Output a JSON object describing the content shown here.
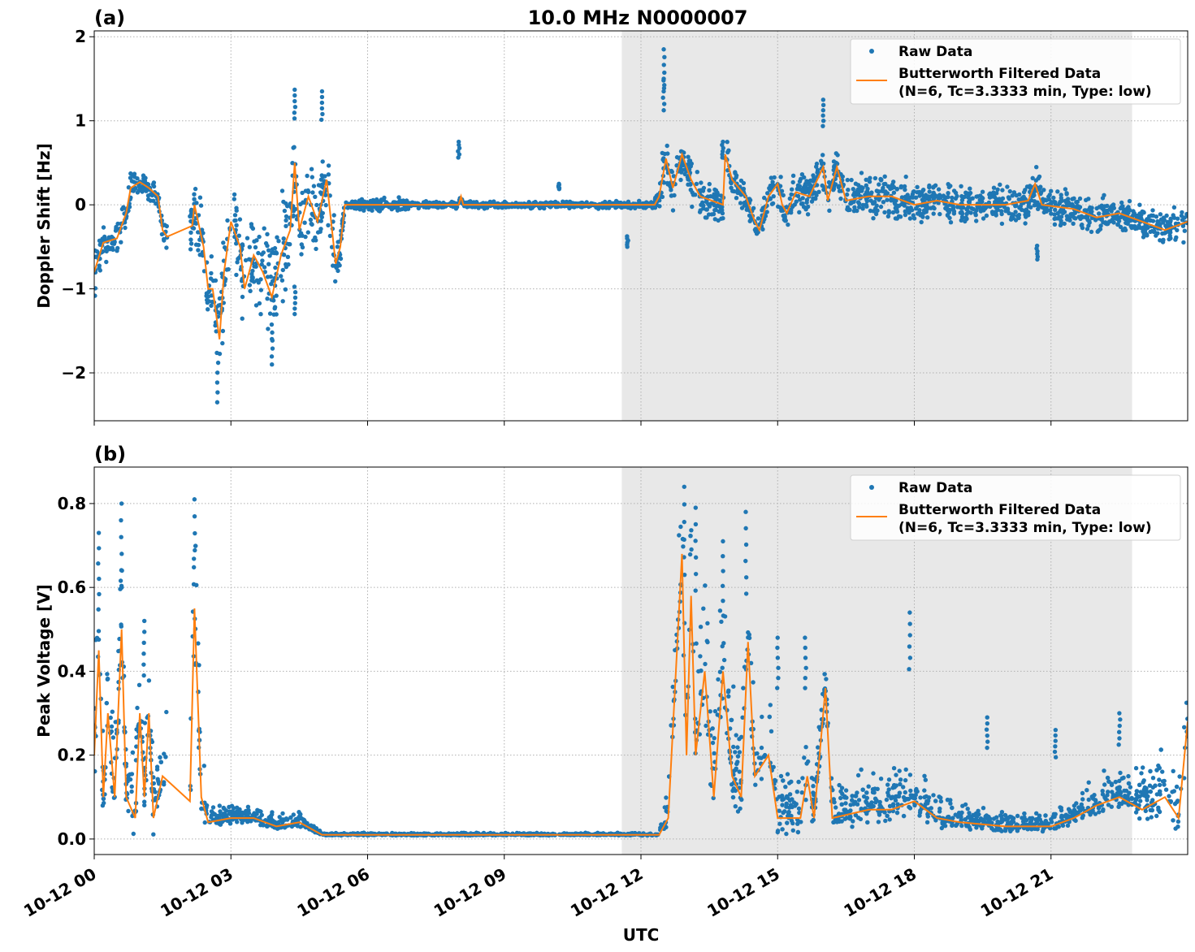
{
  "colors": {
    "raw": "#1f77b4",
    "filtered": "#ff7f0e",
    "shade": "#e6e6e6"
  },
  "chart_data": [
    {
      "type": "scatter+line",
      "panel_label": "(a)",
      "title": "10.0 MHz N0000007",
      "ylabel": "Doppler Shift [Hz]",
      "xlabel": "",
      "xlim_hours": [
        0,
        24
      ],
      "ylim": [
        -2.57,
        2.07
      ],
      "yticks": [
        {
          "v": 2,
          "label": "2"
        },
        {
          "v": 1,
          "label": "1"
        },
        {
          "v": 0,
          "label": "0"
        },
        {
          "v": -1,
          "label": "−1"
        },
        {
          "v": -2,
          "label": "−2"
        }
      ],
      "xticks_hours": [
        0,
        3,
        6,
        9,
        12,
        15,
        18,
        21
      ],
      "grid": true,
      "shaded_interval_hours": [
        11.58,
        22.78
      ],
      "legend": {
        "placement": "top-right",
        "entries": [
          "Raw Data",
          "Butterworth Filtered Data",
          "(N=6, Tc=3.3333 min, Type: low)"
        ]
      },
      "filtered": [
        [
          0,
          -0.8
        ],
        [
          0.2,
          -0.45
        ],
        [
          0.5,
          -0.4
        ],
        [
          0.7,
          -0.1
        ],
        [
          0.8,
          0.2
        ],
        [
          1.0,
          0.27
        ],
        [
          1.2,
          0.2
        ],
        [
          1.4,
          0.1
        ],
        [
          1.5,
          -0.3
        ],
        [
          1.6,
          -0.38
        ],
        [
          2.15,
          -0.25
        ],
        [
          2.2,
          0
        ],
        [
          2.4,
          -0.5
        ],
        [
          2.5,
          -1.0
        ],
        [
          2.6,
          -1.0
        ],
        [
          2.75,
          -1.6
        ],
        [
          2.85,
          -0.8
        ],
        [
          3.0,
          -0.2
        ],
        [
          3.2,
          -0.5
        ],
        [
          3.3,
          -1.0
        ],
        [
          3.5,
          -0.6
        ],
        [
          3.7,
          -0.8
        ],
        [
          3.9,
          -1.1
        ],
        [
          4.1,
          -0.6
        ],
        [
          4.3,
          -0.3
        ],
        [
          4.4,
          0.5
        ],
        [
          4.5,
          -0.3
        ],
        [
          4.7,
          0.1
        ],
        [
          4.9,
          -0.2
        ],
        [
          5.1,
          0.3
        ],
        [
          5.3,
          -0.7
        ],
        [
          5.4,
          -0.5
        ],
        [
          5.5,
          0
        ],
        [
          8.0,
          0
        ],
        [
          8.05,
          0.1
        ],
        [
          8.1,
          0
        ],
        [
          12.3,
          0
        ],
        [
          12.4,
          0.1
        ],
        [
          12.55,
          0.55
        ],
        [
          12.7,
          0.2
        ],
        [
          12.9,
          0.6
        ],
        [
          13.1,
          0.3
        ],
        [
          13.3,
          0.1
        ],
        [
          13.8,
          0
        ],
        [
          13.85,
          0.6
        ],
        [
          14.0,
          0.3
        ],
        [
          14.3,
          0.1
        ],
        [
          14.5,
          -0.2
        ],
        [
          14.6,
          -0.3
        ],
        [
          14.8,
          0.1
        ],
        [
          15.0,
          0.25
        ],
        [
          15.1,
          0
        ],
        [
          15.2,
          -0.1
        ],
        [
          15.4,
          0.15
        ],
        [
          15.7,
          0.1
        ],
        [
          16.0,
          0.45
        ],
        [
          16.1,
          0.05
        ],
        [
          16.3,
          0.45
        ],
        [
          16.5,
          0.05
        ],
        [
          17,
          0.1
        ],
        [
          17.5,
          0.1
        ],
        [
          18,
          0
        ],
        [
          18.5,
          0.05
        ],
        [
          19,
          0
        ],
        [
          19.5,
          0
        ],
        [
          20,
          0
        ],
        [
          20.5,
          0.05
        ],
        [
          20.65,
          0.25
        ],
        [
          20.8,
          0
        ],
        [
          21.5,
          -0.05
        ],
        [
          22,
          -0.15
        ],
        [
          22.5,
          -0.1
        ],
        [
          23,
          -0.2
        ],
        [
          23.5,
          -0.3
        ],
        [
          24,
          -0.2
        ]
      ],
      "raw_spread": [
        [
          0,
          0.25
        ],
        [
          1.5,
          0.15
        ],
        [
          2.2,
          0.35
        ],
        [
          2.6,
          0.5
        ],
        [
          3.0,
          0.6
        ],
        [
          4.3,
          0.6
        ],
        [
          5.3,
          0.4
        ],
        [
          5.5,
          0.06
        ],
        [
          6.7,
          0.08
        ],
        [
          7,
          0.04
        ],
        [
          12.3,
          0.04
        ],
        [
          12.5,
          0.35
        ],
        [
          13.5,
          0.2
        ],
        [
          16.5,
          0.25
        ],
        [
          20,
          0.22
        ],
        [
          24,
          0.2
        ]
      ],
      "raw_outliers": [
        [
          12.5,
          1.85
        ],
        [
          12.5,
          1.5
        ],
        [
          4.4,
          1.37
        ],
        [
          5.0,
          1.35
        ],
        [
          16.0,
          1.25
        ],
        [
          2.7,
          -2.35
        ],
        [
          3.9,
          -1.9
        ],
        [
          8.0,
          0.75
        ],
        [
          13.8,
          0.75
        ],
        [
          11.7,
          -0.5
        ],
        [
          20.7,
          -0.65
        ],
        [
          10.2,
          0.25
        ],
        [
          4.4,
          -1.3
        ]
      ]
    },
    {
      "type": "scatter+line",
      "panel_label": "(b)",
      "ylabel": "Peak Voltage [V]",
      "xlabel": "UTC",
      "xlim_hours": [
        0,
        24
      ],
      "ylim": [
        -0.037,
        0.887
      ],
      "yticks": [
        {
          "v": 0.8,
          "label": "0.8"
        },
        {
          "v": 0.6,
          "label": "0.6"
        },
        {
          "v": 0.4,
          "label": "0.4"
        },
        {
          "v": 0.2,
          "label": "0.2"
        },
        {
          "v": 0.0,
          "label": "0.0"
        }
      ],
      "xticks": [
        {
          "h": 0,
          "label": "10-12 00"
        },
        {
          "h": 3,
          "label": "10-12 03"
        },
        {
          "h": 6,
          "label": "10-12 06"
        },
        {
          "h": 9,
          "label": "10-12 09"
        },
        {
          "h": 12,
          "label": "10-12 12"
        },
        {
          "h": 15,
          "label": "10-12 15"
        },
        {
          "h": 18,
          "label": "10-12 18"
        },
        {
          "h": 21,
          "label": "10-12 21"
        }
      ],
      "grid": true,
      "shaded_interval_hours": [
        11.58,
        22.78
      ],
      "legend": {
        "placement": "top-right",
        "entries": [
          "Raw Data",
          "Butterworth Filtered Data",
          "(N=6, Tc=3.3333 min, Type: low)"
        ]
      },
      "filtered": [
        [
          0,
          0.2
        ],
        [
          0.1,
          0.45
        ],
        [
          0.2,
          0.1
        ],
        [
          0.3,
          0.3
        ],
        [
          0.45,
          0.1
        ],
        [
          0.6,
          0.5
        ],
        [
          0.7,
          0.1
        ],
        [
          0.9,
          0.05
        ],
        [
          1.0,
          0.3
        ],
        [
          1.1,
          0.1
        ],
        [
          1.2,
          0.3
        ],
        [
          1.3,
          0.05
        ],
        [
          1.5,
          0.15
        ],
        [
          2.1,
          0.09
        ],
        [
          2.2,
          0.55
        ],
        [
          2.35,
          0.1
        ],
        [
          2.5,
          0.04
        ],
        [
          3,
          0.05
        ],
        [
          3.5,
          0.05
        ],
        [
          4,
          0.03
        ],
        [
          4.5,
          0.04
        ],
        [
          5,
          0.01
        ],
        [
          12.4,
          0.01
        ],
        [
          12.6,
          0.05
        ],
        [
          12.9,
          0.68
        ],
        [
          13.0,
          0.2
        ],
        [
          13.1,
          0.58
        ],
        [
          13.2,
          0.2
        ],
        [
          13.4,
          0.4
        ],
        [
          13.6,
          0.1
        ],
        [
          13.8,
          0.4
        ],
        [
          14.0,
          0.15
        ],
        [
          14.2,
          0.1
        ],
        [
          14.35,
          0.47
        ],
        [
          14.5,
          0.15
        ],
        [
          14.8,
          0.2
        ],
        [
          15,
          0.05
        ],
        [
          15.5,
          0.05
        ],
        [
          15.65,
          0.15
        ],
        [
          15.8,
          0.05
        ],
        [
          16.05,
          0.36
        ],
        [
          16.2,
          0.05
        ],
        [
          17,
          0.07
        ],
        [
          17.5,
          0.07
        ],
        [
          18,
          0.09
        ],
        [
          18.5,
          0.05
        ],
        [
          19,
          0.04
        ],
        [
          20,
          0.03
        ],
        [
          21,
          0.03
        ],
        [
          21.5,
          0.05
        ],
        [
          22,
          0.08
        ],
        [
          22.5,
          0.1
        ],
        [
          23,
          0.07
        ],
        [
          23.5,
          0.1
        ],
        [
          23.8,
          0.05
        ],
        [
          24,
          0.28
        ]
      ],
      "raw_spread": [
        [
          0,
          0.25
        ],
        [
          1.5,
          0.15
        ],
        [
          2.2,
          0.3
        ],
        [
          2.5,
          0.04
        ],
        [
          4.5,
          0.03
        ],
        [
          5,
          0.005
        ],
        [
          12.4,
          0.005
        ],
        [
          12.9,
          0.3
        ],
        [
          14.5,
          0.2
        ],
        [
          16.2,
          0.1
        ],
        [
          18,
          0.1
        ],
        [
          19,
          0.05
        ],
        [
          21,
          0.04
        ],
        [
          22.5,
          0.08
        ],
        [
          24,
          0.2
        ]
      ],
      "raw_outliers": [
        [
          0.6,
          0.8
        ],
        [
          2.2,
          0.81
        ],
        [
          12.95,
          0.84
        ],
        [
          13.2,
          0.79
        ],
        [
          14.3,
          0.78
        ],
        [
          13.8,
          0.71
        ],
        [
          17.9,
          0.54
        ],
        [
          19.6,
          0.29
        ],
        [
          21.1,
          0.26
        ],
        [
          22.5,
          0.3
        ],
        [
          15.6,
          0.48
        ],
        [
          15.0,
          0.48
        ],
        [
          0.1,
          0.73
        ],
        [
          1.1,
          0.52
        ]
      ]
    }
  ]
}
